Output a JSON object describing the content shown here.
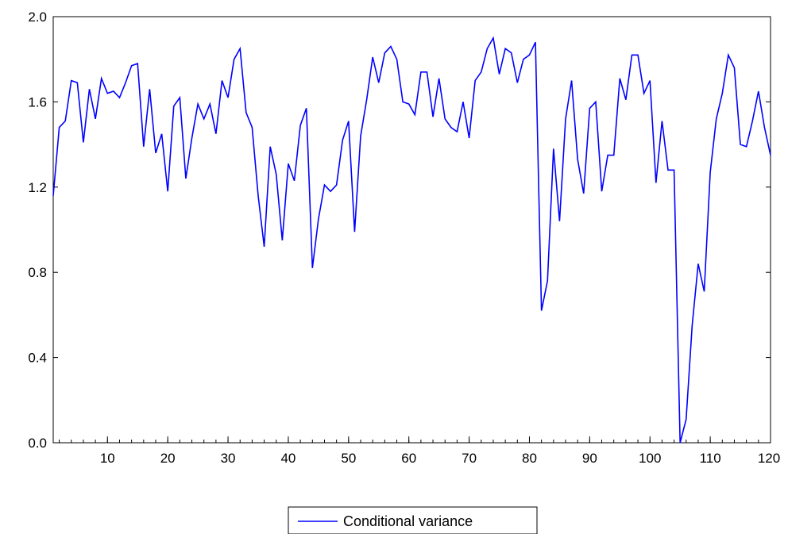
{
  "chart_data": {
    "type": "line",
    "title": "",
    "xlabel": "",
    "ylabel": "",
    "xlim": [
      1,
      120
    ],
    "ylim": [
      0.0,
      2.0
    ],
    "grid": false,
    "legend_position": "bottom-center",
    "x_ticks": [
      10,
      20,
      30,
      40,
      50,
      60,
      70,
      80,
      90,
      100,
      110,
      120
    ],
    "y_ticks": [
      0.0,
      0.4,
      0.8,
      1.2,
      1.6,
      2.0
    ],
    "x_tick_labels": [
      "10",
      "20",
      "30",
      "40",
      "50",
      "60",
      "70",
      "80",
      "90",
      "100",
      "110",
      "120"
    ],
    "y_tick_labels": [
      "0.0",
      "0.4",
      "0.8",
      "1.2",
      "1.6",
      "2.0"
    ],
    "series": [
      {
        "name": "Conditional variance",
        "color": "#0000ff",
        "x": [
          1,
          2,
          3,
          4,
          5,
          6,
          7,
          8,
          9,
          10,
          11,
          12,
          13,
          14,
          15,
          16,
          17,
          18,
          19,
          20,
          21,
          22,
          23,
          24,
          25,
          26,
          27,
          28,
          29,
          30,
          31,
          32,
          33,
          34,
          35,
          36,
          37,
          38,
          39,
          40,
          41,
          42,
          43,
          44,
          45,
          46,
          47,
          48,
          49,
          50,
          51,
          52,
          53,
          54,
          55,
          56,
          57,
          58,
          59,
          60,
          61,
          62,
          63,
          64,
          65,
          66,
          67,
          68,
          69,
          70,
          71,
          72,
          73,
          74,
          75,
          76,
          77,
          78,
          79,
          80,
          81,
          82,
          83,
          84,
          85,
          86,
          87,
          88,
          89,
          90,
          91,
          92,
          93,
          94,
          95,
          96,
          97,
          98,
          99,
          100,
          101,
          102,
          103,
          104,
          105,
          106,
          107,
          108,
          109,
          110,
          111,
          112,
          113,
          114,
          115,
          116,
          117,
          118,
          119,
          120
        ],
        "values": [
          1.16,
          1.48,
          1.51,
          1.7,
          1.69,
          1.41,
          1.66,
          1.52,
          1.71,
          1.64,
          1.65,
          1.62,
          1.69,
          1.77,
          1.78,
          1.39,
          1.66,
          1.36,
          1.45,
          1.18,
          1.58,
          1.62,
          1.24,
          1.43,
          1.59,
          1.52,
          1.59,
          1.45,
          1.7,
          1.62,
          1.8,
          1.85,
          1.55,
          1.48,
          1.16,
          0.92,
          1.39,
          1.26,
          0.95,
          1.31,
          1.23,
          1.49,
          1.57,
          0.82,
          1.05,
          1.21,
          1.18,
          1.21,
          1.42,
          1.51,
          0.99,
          1.44,
          1.61,
          1.81,
          1.69,
          1.83,
          1.86,
          1.8,
          1.6,
          1.59,
          1.54,
          1.74,
          1.74,
          1.53,
          1.71,
          1.52,
          1.48,
          1.46,
          1.6,
          1.43,
          1.7,
          1.74,
          1.85,
          1.9,
          1.73,
          1.85,
          1.83,
          1.69,
          1.8,
          1.82,
          1.88,
          0.62,
          0.76,
          1.38,
          1.04,
          1.52,
          1.7,
          1.33,
          1.17,
          1.57,
          1.6,
          1.18,
          1.35,
          1.35,
          1.71,
          1.61,
          1.82,
          1.82,
          1.64,
          1.7,
          1.22,
          1.51,
          1.28,
          1.28,
          0.0,
          0.11,
          0.55,
          0.84,
          0.71,
          1.27,
          1.52,
          1.64,
          1.82,
          1.76,
          1.4,
          1.39,
          1.51,
          1.65,
          1.48,
          1.35
        ]
      }
    ]
  }
}
